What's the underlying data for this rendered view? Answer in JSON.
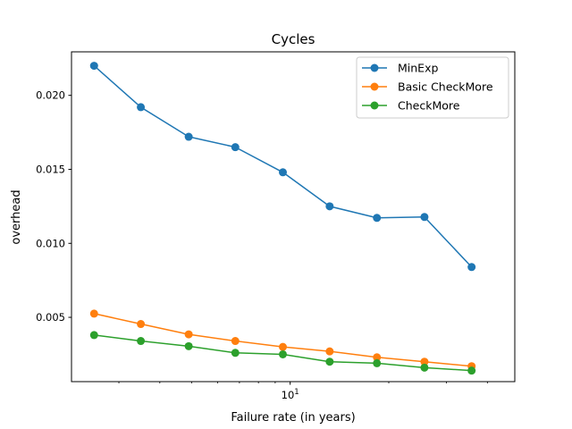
{
  "chart_data": {
    "type": "line",
    "title": "Cycles",
    "xlabel": "Failure rate (in years)",
    "ylabel": "overhead",
    "x_scale": "log",
    "xlim": [
      2.15,
      48.5
    ],
    "ylim": [
      0.000655,
      0.02294
    ],
    "x": [
      2.52,
      3.5,
      4.9,
      6.8,
      9.5,
      13.2,
      18.4,
      25.7,
      35.8
    ],
    "x_ticks": [
      {
        "value": 10,
        "base": "10",
        "exp": "1"
      }
    ],
    "y_ticks": [
      {
        "value": 0.005,
        "label": "0.005"
      },
      {
        "value": 0.01,
        "label": "0.010"
      },
      {
        "value": 0.015,
        "label": "0.015"
      },
      {
        "value": 0.02,
        "label": "0.020"
      }
    ],
    "x_minor_ticks": [
      3,
      4,
      5,
      6,
      7,
      8,
      9,
      20,
      30,
      40
    ],
    "grid": false,
    "legend_position": "top-right",
    "series": [
      {
        "name": "MinExp",
        "color": "#1f77b4",
        "values": [
          0.022,
          0.0192,
          0.0172,
          0.0165,
          0.0148,
          0.0125,
          0.01172,
          0.01178,
          0.0084
        ]
      },
      {
        "name": "Basic CheckMore",
        "color": "#ff7f0e",
        "values": [
          0.00525,
          0.00455,
          0.00385,
          0.0034,
          0.003,
          0.0027,
          0.0023,
          0.002,
          0.0017
        ]
      },
      {
        "name": "CheckMore",
        "color": "#2ca02c",
        "values": [
          0.0038,
          0.0034,
          0.00305,
          0.0026,
          0.0025,
          0.002,
          0.0019,
          0.0016,
          0.0014
        ]
      }
    ]
  }
}
